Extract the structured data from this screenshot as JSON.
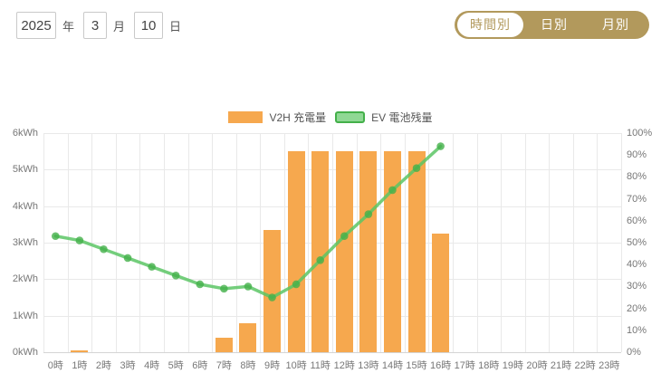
{
  "date_selector": {
    "year": "2025",
    "year_suffix": "年",
    "month": "3",
    "month_suffix": "月",
    "day": "10",
    "day_suffix": "日"
  },
  "view_tabs": [
    {
      "label": "時間別",
      "active": true
    },
    {
      "label": "日別",
      "active": false
    },
    {
      "label": "月別",
      "active": false
    }
  ],
  "colors": {
    "tab_gold": "#b2995c",
    "bar_orange": "#f6a84e",
    "line_green": "#5cc665",
    "marker_green": "#43b04a",
    "legend_green_fill": "#8fd894",
    "grid_line": "#e9e9e9",
    "axis_text": "#777777"
  },
  "chart_data": {
    "type": "bar",
    "subtype": "combo-bar-line",
    "categories": [
      "0時",
      "1時",
      "2時",
      "3時",
      "4時",
      "5時",
      "6時",
      "7時",
      "8時",
      "9時",
      "10時",
      "11時",
      "12時",
      "13時",
      "14時",
      "15時",
      "16時",
      "17時",
      "18時",
      "19時",
      "20時",
      "21時",
      "22時",
      "23時"
    ],
    "series": [
      {
        "name": "V2H 充電量",
        "type": "bar",
        "axis": "left",
        "unit": "kWh",
        "values": [
          0,
          0.05,
          0,
          0,
          0,
          0,
          0,
          0.4,
          0.8,
          3.35,
          5.5,
          5.5,
          5.5,
          5.5,
          5.5,
          5.5,
          3.25,
          0,
          0,
          0,
          0,
          0,
          0,
          0
        ]
      },
      {
        "name": "EV 電池残量",
        "type": "line",
        "axis": "right",
        "unit": "%",
        "values": [
          53,
          51,
          47,
          43,
          39,
          35,
          31,
          29,
          30,
          25,
          31,
          42,
          53,
          63,
          74,
          84,
          94,
          null,
          null,
          null,
          null,
          null,
          null,
          null
        ]
      }
    ],
    "left_axis": {
      "min": 0,
      "max": 6,
      "tick_step": 1,
      "ticks": [
        "0kWh",
        "1kWh",
        "2kWh",
        "3kWh",
        "4kWh",
        "5kWh",
        "6kWh"
      ]
    },
    "right_axis": {
      "min": 0,
      "max": 100,
      "tick_step": 10,
      "ticks": [
        "0%",
        "10%",
        "20%",
        "30%",
        "40%",
        "50%",
        "60%",
        "70%",
        "80%",
        "90%",
        "100%"
      ]
    },
    "legend": [
      {
        "label": "V2H 充電量",
        "swatch": "bar"
      },
      {
        "label": "EV 電池残量",
        "swatch": "line"
      }
    ],
    "grid": true,
    "legend_position": "top-center"
  }
}
